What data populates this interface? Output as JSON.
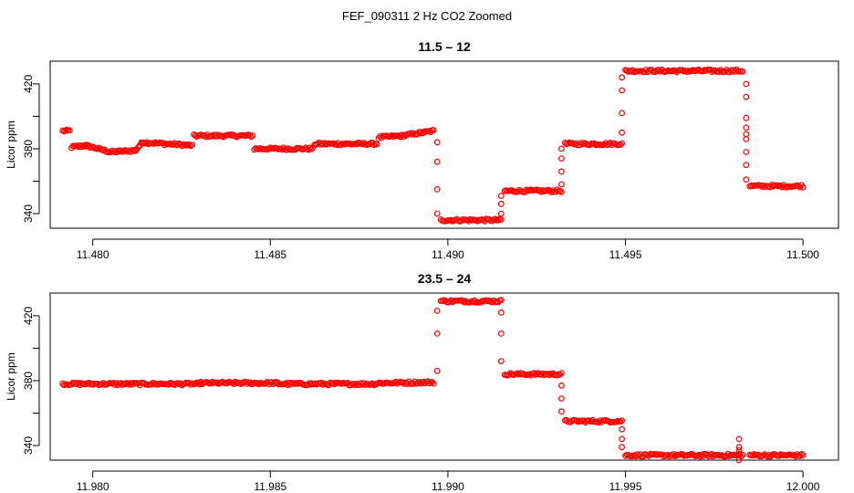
{
  "suptitle": "FEF_090311  2 Hz CO2 Zoomed",
  "colors": {
    "points": "#ff0000",
    "axes": "#000000"
  },
  "chart_data": [
    {
      "type": "scatter",
      "title": "11.5 – 12",
      "xlabel": "",
      "ylabel": "Licor ppm",
      "xlim": [
        11.4788,
        11.501
      ],
      "ylim": [
        331,
        434
      ],
      "xticks": [
        11.48,
        11.485,
        11.49,
        11.495,
        11.5
      ],
      "xtick_labels": [
        "11.480",
        "11.485",
        "11.490",
        "11.495",
        "11.500"
      ],
      "yticks": [
        340,
        360,
        380,
        400,
        420
      ],
      "ytick_labels": [
        "340",
        "",
        "380",
        "",
        "420"
      ],
      "marker": "open-circle",
      "series": [
        {
          "segments": [
            {
              "x0": 11.47915,
              "x1": 11.47935,
              "y0": 391,
              "y1": 391
            },
            {
              "x0": 11.4794,
              "x1": 11.4798,
              "y0": 381,
              "y1": 382
            },
            {
              "x0": 11.4798,
              "x1": 11.4805,
              "y0": 382,
              "y1": 378
            },
            {
              "x0": 11.4805,
              "x1": 11.4812,
              "y0": 378,
              "y1": 379
            },
            {
              "x0": 11.4812,
              "x1": 11.4814,
              "y0": 379,
              "y1": 384
            },
            {
              "x0": 11.4814,
              "x1": 11.4828,
              "y0": 384,
              "y1": 382
            },
            {
              "x0": 11.48285,
              "x1": 11.4845,
              "y0": 388,
              "y1": 388
            },
            {
              "x0": 11.48455,
              "x1": 11.4862,
              "y0": 380,
              "y1": 380
            },
            {
              "x0": 11.48625,
              "x1": 11.488,
              "y0": 383,
              "y1": 383
            },
            {
              "x0": 11.48805,
              "x1": 11.4887,
              "y0": 387,
              "y1": 388
            },
            {
              "x0": 11.4887,
              "x1": 11.4896,
              "y0": 388,
              "y1": 391
            },
            {
              "x0": 11.4898,
              "x1": 11.4915,
              "y0": 336,
              "y1": 336
            },
            {
              "x0": 11.4916,
              "x1": 11.4932,
              "y0": 354,
              "y1": 354
            },
            {
              "x0": 11.4933,
              "x1": 11.4949,
              "y0": 383,
              "y1": 383
            },
            {
              "x0": 11.495,
              "x1": 11.4983,
              "y0": 428,
              "y1": 428
            },
            {
              "x0": 11.4985,
              "x1": 11.5,
              "y0": 357,
              "y1": 357
            }
          ],
          "transitions": [
            {
              "x": 11.4897,
              "y": [
                384,
                372,
                355,
                340
              ]
            },
            {
              "x": 11.4915,
              "y": [
                340,
                346,
                351
              ]
            },
            {
              "x": 11.4932,
              "y": [
                358,
                366,
                374,
                380
              ]
            },
            {
              "x": 11.4949,
              "y": [
                390,
                402,
                416,
                424
              ]
            },
            {
              "x": 11.4984,
              "y": [
                420,
                412,
                399,
                393,
                389,
                386,
                378,
                370,
                361
              ]
            }
          ]
        }
      ]
    },
    {
      "type": "scatter",
      "title": "23.5 – 24",
      "xlabel": "",
      "ylabel": "Licor ppm",
      "xlim": [
        11.9788,
        12.001
      ],
      "ylim": [
        331,
        434
      ],
      "xticks": [
        11.98,
        11.985,
        11.99,
        11.995,
        12.0
      ],
      "xtick_labels": [
        "11.980",
        "11.985",
        "11.990",
        "11.995",
        "12.000"
      ],
      "yticks": [
        340,
        360,
        380,
        400,
        420
      ],
      "ytick_labels": [
        "340",
        "",
        "380",
        "",
        "420"
      ],
      "marker": "open-circle",
      "series": [
        {
          "segments": [
            {
              "x0": 11.97915,
              "x1": 11.983,
              "y0": 378,
              "y1": 378
            },
            {
              "x0": 11.983,
              "x1": 11.9852,
              "y0": 378.5,
              "y1": 378.5
            },
            {
              "x0": 11.9852,
              "x1": 11.988,
              "y0": 378,
              "y1": 378
            },
            {
              "x0": 11.988,
              "x1": 11.9896,
              "y0": 378.5,
              "y1": 379
            },
            {
              "x0": 11.9898,
              "x1": 11.9915,
              "y0": 429,
              "y1": 429
            },
            {
              "x0": 11.9916,
              "x1": 11.9932,
              "y0": 384,
              "y1": 384
            },
            {
              "x0": 11.9933,
              "x1": 11.9949,
              "y0": 355,
              "y1": 355
            },
            {
              "x0": 11.995,
              "x1": 11.9983,
              "y0": 334,
              "y1": 334
            },
            {
              "x0": 11.9985,
              "x1": 12.0,
              "y0": 334,
              "y1": 334
            }
          ],
          "transitions": [
            {
              "x": 11.9897,
              "y": [
                386,
                409,
                423
              ]
            },
            {
              "x": 11.9915,
              "y": [
                422,
                409,
                392
              ]
            },
            {
              "x": 11.9932,
              "y": [
                377,
                369,
                361
              ]
            },
            {
              "x": 11.9949,
              "y": [
                350,
                344,
                339
              ]
            },
            {
              "x": 11.9982,
              "y": [
                344,
                339,
                337,
                335,
                331
              ]
            }
          ]
        }
      ]
    }
  ]
}
